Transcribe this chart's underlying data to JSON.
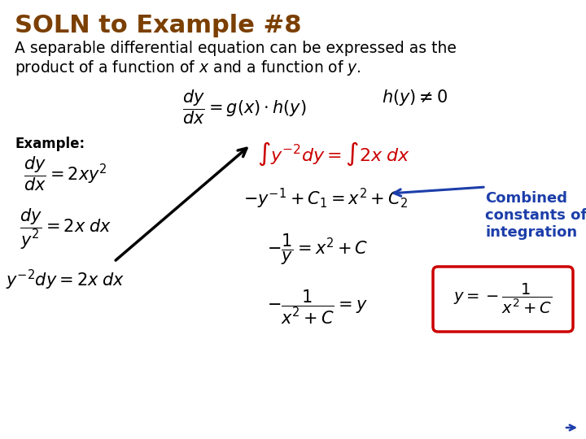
{
  "title": "SOLN to Example #8",
  "title_color": "#7B3F00",
  "title_fontsize": 22,
  "bg_color": "#FFFFFF",
  "body_fontsize": 13.5,
  "eq_fontsize": 15,
  "example_label": "Example:",
  "annotation_text": "Combined\nconstants of\nintegration",
  "annotation_color": "#1C3EAA",
  "arrow_color": "#1C3EAA",
  "integral_color": "#CC0000",
  "box_color": "#CC0000",
  "arrow_black_color": "#000000"
}
